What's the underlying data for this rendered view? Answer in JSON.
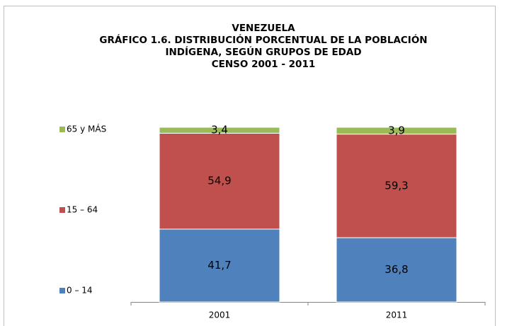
{
  "chart_data": {
    "type": "stacked_bar",
    "title": [
      "VENEZUELA",
      "GRÁFICO 1.6. DISTRIBUCIÓN PORCENTUAL DE LA POBLACIÓN",
      "INDÍGENA, SEGÚN GRUPOS DE EDAD",
      "CENSO 2001 - 2011"
    ],
    "categories": [
      "2001",
      "2011"
    ],
    "series": [
      {
        "name": "0 – 14",
        "color": "#4f81bd",
        "values": [
          41.7,
          36.8
        ],
        "value_labels": [
          "41,7",
          "36,8"
        ]
      },
      {
        "name": "15 – 64",
        "color": "#c0504d",
        "values": [
          54.9,
          59.3
        ],
        "value_labels": [
          "54,9",
          "59,3"
        ]
      },
      {
        "name": "65 y MÁS",
        "color": "#9bbb59",
        "values": [
          3.4,
          3.9
        ],
        "value_labels": [
          "3,4",
          "3,9"
        ]
      }
    ],
    "ylim": [
      0,
      100
    ],
    "legend": "left"
  }
}
